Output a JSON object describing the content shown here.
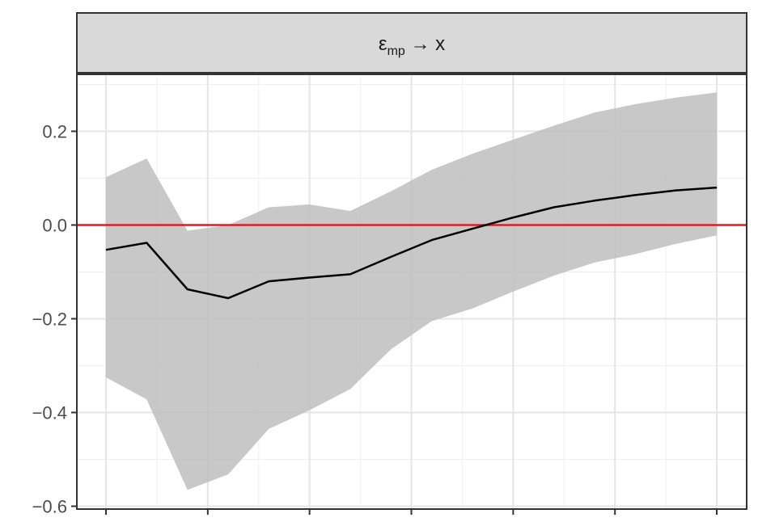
{
  "panel": {
    "strip_label": "ε",
    "strip_subscript": "mp",
    "strip_suffix": " → x"
  },
  "chart_data": {
    "type": "line",
    "title": "εmp → x",
    "xlabel": "",
    "ylabel": "",
    "ylim": [
      -0.6,
      0.31
    ],
    "xlim": [
      0,
      15
    ],
    "y_ticks": [
      0.2,
      0.0,
      -0.2,
      -0.4,
      -0.6
    ],
    "y_tick_labels": [
      "0.2",
      "0.0",
      "−0.2",
      "−0.4",
      "−0.6"
    ],
    "grid": true,
    "reference_line": {
      "y": 0.0,
      "color": "#e41a1c"
    },
    "band_color": "#bebebe",
    "line_color": "#000000",
    "x": [
      0,
      1,
      2,
      3,
      4,
      5,
      6,
      7,
      8,
      9,
      10,
      11,
      12,
      13,
      14,
      15
    ],
    "series": [
      {
        "name": "",
        "values": [
          -0.053,
          -0.038,
          -0.137,
          -0.156,
          -0.12,
          -0.112,
          -0.105,
          -0.068,
          -0.032,
          -0.008,
          0.016,
          0.038,
          0.052,
          0.064,
          0.074,
          0.08
        ]
      }
    ],
    "band_upper": [
      0.102,
      0.142,
      -0.012,
      0.0,
      0.038,
      0.044,
      0.03,
      0.072,
      0.118,
      0.152,
      0.182,
      0.212,
      0.24,
      0.258,
      0.272,
      0.283
    ],
    "band_lower": [
      -0.325,
      -0.372,
      -0.565,
      -0.532,
      -0.435,
      -0.395,
      -0.35,
      -0.265,
      -0.205,
      -0.178,
      -0.142,
      -0.108,
      -0.08,
      -0.062,
      -0.04,
      -0.022
    ]
  }
}
